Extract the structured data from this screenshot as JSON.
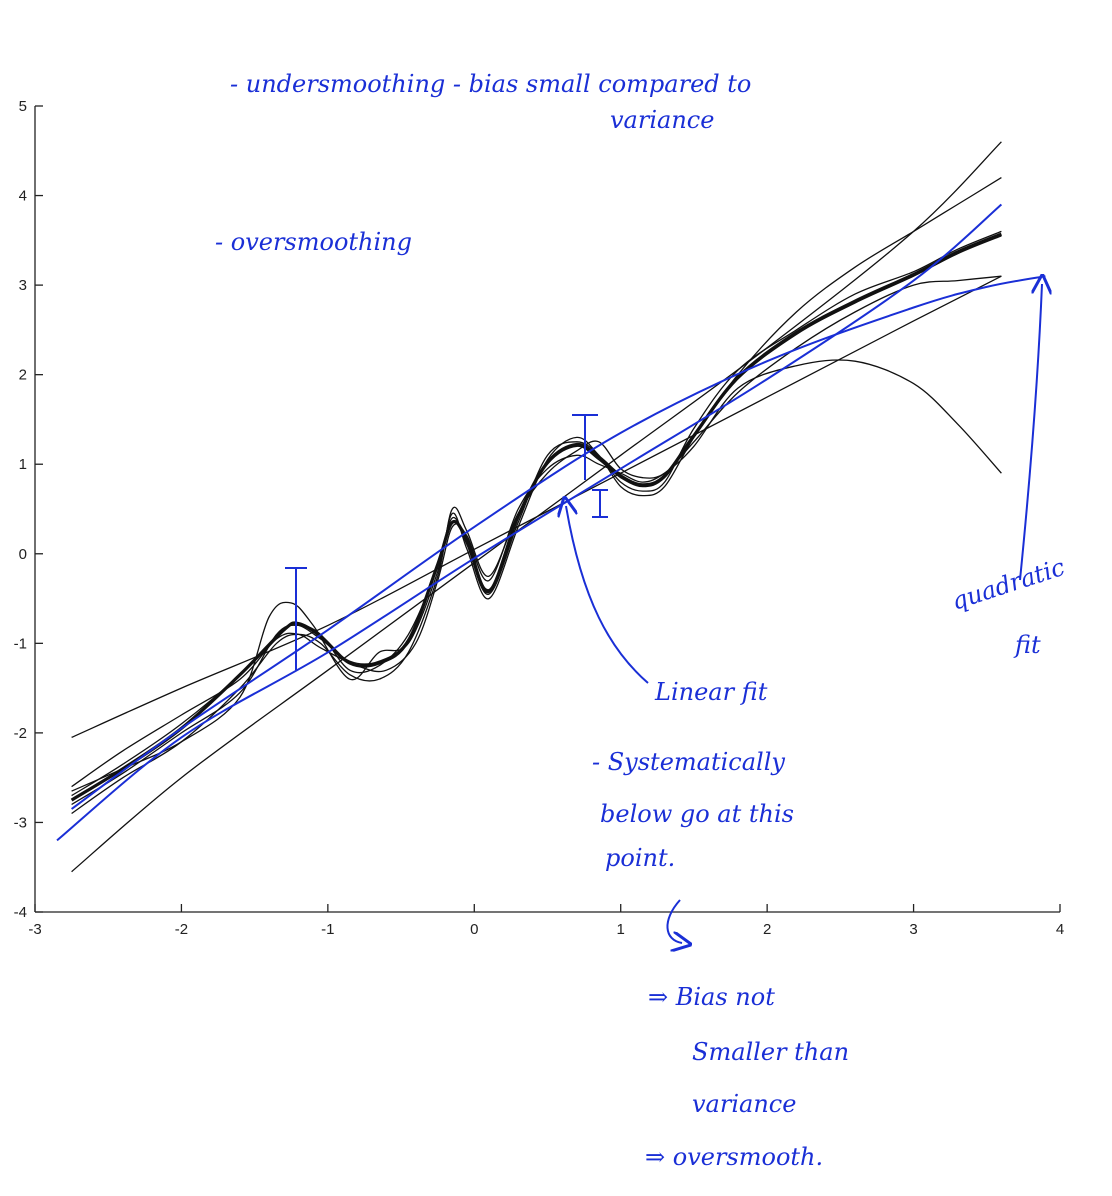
{
  "chart_data": {
    "type": "line",
    "title": "",
    "xlabel": "",
    "ylabel": "",
    "xlim": [
      -3,
      4
    ],
    "ylim": [
      -4,
      5
    ],
    "xticks": [
      -3,
      -2,
      -1,
      0,
      1,
      2,
      3,
      4
    ],
    "yticks": [
      5,
      4,
      3,
      2,
      1,
      0,
      -1,
      -2,
      -3,
      -4
    ],
    "grid": false,
    "colors": {
      "curves": "#111111",
      "annotation": "#1a2fd6"
    },
    "series": [
      {
        "x": [
          -2.75,
          -2.4,
          -2.0,
          -1.6,
          -1.3,
          -1.2,
          -1.05,
          -0.85,
          -0.65,
          -0.45,
          -0.25,
          -0.15,
          -0.05,
          0.1,
          0.3,
          0.5,
          0.7,
          0.85,
          1.0,
          1.15,
          1.3,
          1.5,
          1.8,
          2.2,
          2.6,
          3.0,
          3.3,
          3.6
        ],
        "y": [
          -2.7,
          -2.35,
          -1.9,
          -1.35,
          -0.85,
          -0.8,
          -0.95,
          -1.2,
          -1.2,
          -0.95,
          -0.1,
          0.35,
          0.15,
          -0.4,
          0.4,
          1.0,
          1.2,
          1.05,
          0.85,
          0.75,
          0.85,
          1.3,
          1.95,
          2.45,
          2.8,
          3.1,
          3.35,
          3.55
        ]
      },
      {
        "x": [
          -2.75,
          -2.4,
          -2.0,
          -1.6,
          -1.4,
          -1.25,
          -1.1,
          -0.85,
          -0.65,
          -0.45,
          -0.25,
          -0.15,
          -0.05,
          0.1,
          0.3,
          0.5,
          0.7,
          0.85,
          1.0,
          1.15,
          1.3,
          1.5,
          1.8,
          2.2,
          2.6,
          3.0,
          3.3,
          3.6
        ],
        "y": [
          -2.65,
          -2.4,
          -2.1,
          -1.6,
          -0.7,
          -0.55,
          -0.8,
          -1.4,
          -1.1,
          -1.0,
          -0.2,
          0.45,
          0.05,
          -0.5,
          0.3,
          1.05,
          1.3,
          1.1,
          0.8,
          0.7,
          0.8,
          1.4,
          2.05,
          2.5,
          2.9,
          3.15,
          3.4,
          3.6
        ]
      },
      {
        "x": [
          -2.75,
          -2.4,
          -2.0,
          -1.6,
          -1.35,
          -1.2,
          -1.05,
          -0.8,
          -0.6,
          -0.4,
          -0.25,
          -0.15,
          -0.05,
          0.1,
          0.3,
          0.5,
          0.7,
          0.85,
          1.0,
          1.15,
          1.3,
          1.5,
          1.8,
          2.2,
          2.6,
          3.0,
          3.3,
          3.6
        ],
        "y": [
          -2.6,
          -2.2,
          -1.8,
          -1.4,
          -0.95,
          -0.9,
          -1.05,
          -1.25,
          -1.3,
          -1.0,
          -0.3,
          0.3,
          0.2,
          -0.3,
          0.5,
          0.95,
          1.1,
          1.0,
          0.9,
          0.8,
          0.9,
          1.2,
          1.85,
          2.1,
          2.15,
          1.9,
          1.45,
          0.9
        ]
      },
      {
        "x": [
          -2.75,
          -2.4,
          -2.0,
          -1.6,
          -1.35,
          -1.2,
          -1.05,
          -0.85,
          -0.65,
          -0.45,
          -0.25,
          -0.15,
          -0.05,
          0.1,
          0.3,
          0.5,
          0.7,
          0.85,
          1.0,
          1.15,
          1.3,
          1.5,
          1.8,
          2.2,
          2.6,
          3.0,
          3.3,
          3.6
        ],
        "y": [
          -2.8,
          -2.45,
          -2.0,
          -1.55,
          -0.9,
          -0.8,
          -0.9,
          -1.3,
          -1.25,
          -0.9,
          -0.15,
          0.4,
          0.1,
          -0.45,
          0.35,
          1.1,
          1.25,
          1.1,
          0.75,
          0.65,
          0.75,
          1.3,
          2.0,
          2.7,
          3.2,
          3.6,
          3.9,
          4.2
        ]
      },
      {
        "x": [
          -2.75,
          -2.4,
          -2.0,
          -1.6,
          -1.35,
          -1.2,
          -1.05,
          -0.85,
          -0.65,
          -0.45,
          -0.25,
          -0.15,
          -0.05,
          0.1,
          0.3,
          0.5,
          0.7,
          0.85,
          1.0,
          1.15,
          1.3,
          1.5,
          1.8,
          2.2,
          2.6,
          3.0,
          3.3,
          3.6
        ],
        "y": [
          -2.9,
          -2.5,
          -2.1,
          -1.5,
          -1.0,
          -0.9,
          -1.0,
          -1.35,
          -1.4,
          -1.1,
          -0.25,
          0.5,
          0.25,
          -0.25,
          0.45,
          0.9,
          1.15,
          1.25,
          0.95,
          0.85,
          0.9,
          1.25,
          1.8,
          2.3,
          2.7,
          3.0,
          3.05,
          3.1
        ]
      },
      {
        "x": [
          -2.75,
          -2.0,
          -1.0,
          0.0,
          1.0,
          2.0,
          3.0,
          3.6
        ],
        "y": [
          -3.55,
          -2.5,
          -1.3,
          -0.1,
          1.1,
          2.3,
          3.6,
          4.6
        ]
      },
      {
        "x": [
          -2.75,
          -2.0,
          -1.0,
          0.0,
          1.0,
          2.0,
          3.0,
          3.6
        ],
        "y": [
          -2.05,
          -1.5,
          -0.8,
          0.05,
          0.9,
          1.75,
          2.6,
          3.1
        ]
      },
      {
        "x": [
          -2.75,
          -2.4,
          -2.0,
          -1.6,
          -1.3,
          -1.2,
          -1.05,
          -0.85,
          -0.65,
          -0.45,
          -0.25,
          -0.15,
          -0.05,
          0.1,
          0.3,
          0.5,
          0.7,
          0.85,
          1.0,
          1.15,
          1.3,
          1.5,
          1.8,
          2.2,
          2.6,
          3.0,
          3.3,
          3.6
        ],
        "y": [
          -2.75,
          -2.4,
          -1.95,
          -1.35,
          -0.85,
          -0.78,
          -0.92,
          -1.22,
          -1.22,
          -0.97,
          -0.12,
          0.35,
          0.15,
          -0.42,
          0.42,
          1.02,
          1.22,
          1.08,
          0.87,
          0.77,
          0.87,
          1.32,
          1.97,
          2.47,
          2.82,
          3.12,
          3.37,
          3.57
        ],
        "weight": "bold"
      },
      {
        "x": [
          -2.85,
          -2.0,
          -1.0,
          0.0,
          1.0,
          2.0,
          3.0,
          3.6
        ],
        "y": [
          -3.2,
          -2.05,
          -1.1,
          -0.05,
          0.95,
          1.95,
          3.05,
          3.9
        ],
        "color": "#1a2fd6"
      },
      {
        "x": [
          -2.75,
          -2.0,
          -1.0,
          0.0,
          1.0,
          2.0,
          3.0,
          3.5,
          3.9
        ],
        "y": [
          -2.85,
          -1.95,
          -0.85,
          0.3,
          1.35,
          2.15,
          2.75,
          2.98,
          3.1
        ],
        "color": "#1a2fd6"
      }
    ]
  },
  "annotations": {
    "undersmoothing": "- undersmoothing - bias small compared to",
    "undersmoothing_cont": "variance",
    "oversmoothing": "- oversmoothing",
    "quadratic": "quadratic",
    "quadratic_cont": "fit",
    "linear": "Linear fit",
    "systematically": "- Systematically",
    "below": "below go at this",
    "point": "point.",
    "bias_not": "⇒ Bias not",
    "smaller_than": "Smaller than",
    "variance": "variance",
    "oversmooth": "⇒ oversmooth."
  }
}
